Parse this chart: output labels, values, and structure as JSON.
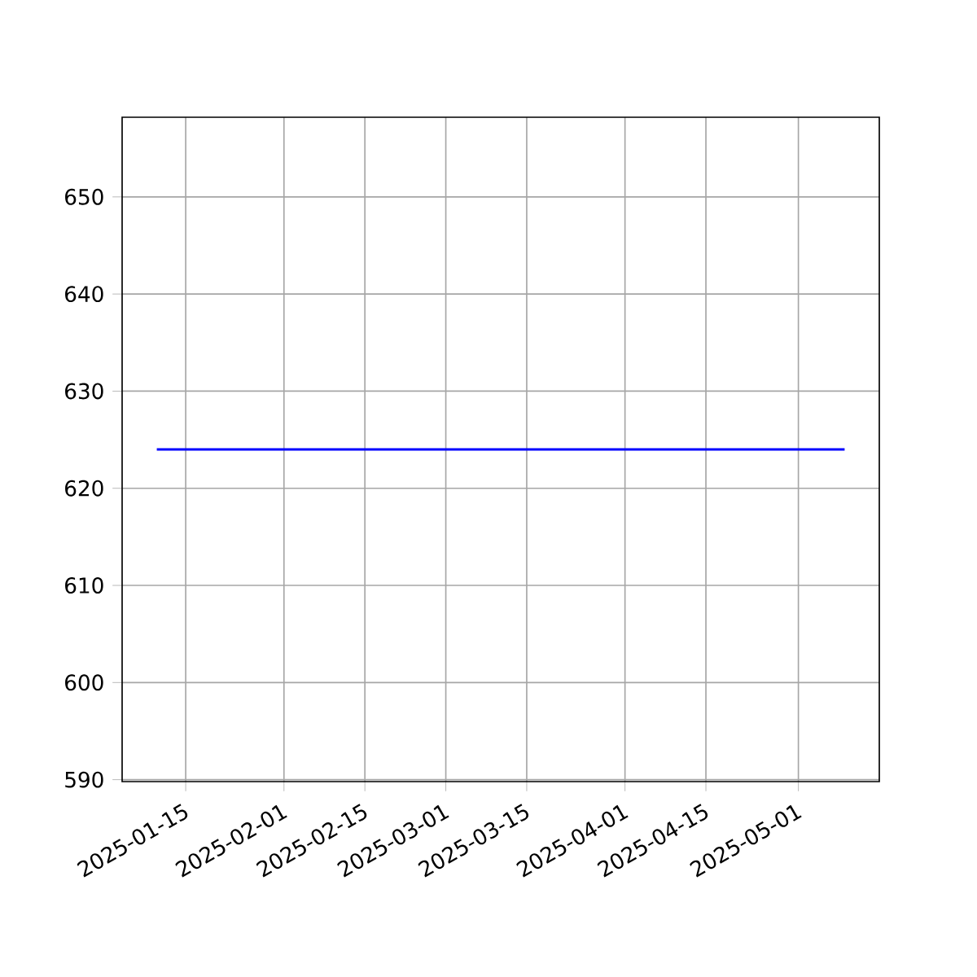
{
  "chart_data": {
    "type": "line",
    "x": [
      "2025-01-10",
      "2025-05-09"
    ],
    "series": [
      {
        "color": "#0000ff",
        "values": [
          624,
          624
        ]
      }
    ],
    "xlim": [
      "2025-01-04",
      "2025-05-15"
    ],
    "xticks": [
      "2025-01-15",
      "2025-02-01",
      "2025-02-15",
      "2025-03-01",
      "2025-03-15",
      "2025-04-01",
      "2025-04-15",
      "2025-05-01"
    ],
    "ylim": [
      589.8,
      658.2
    ],
    "yticks": [
      590,
      600,
      610,
      620,
      630,
      640,
      650
    ],
    "grid": true,
    "marker": "none",
    "line_style": "solid"
  }
}
